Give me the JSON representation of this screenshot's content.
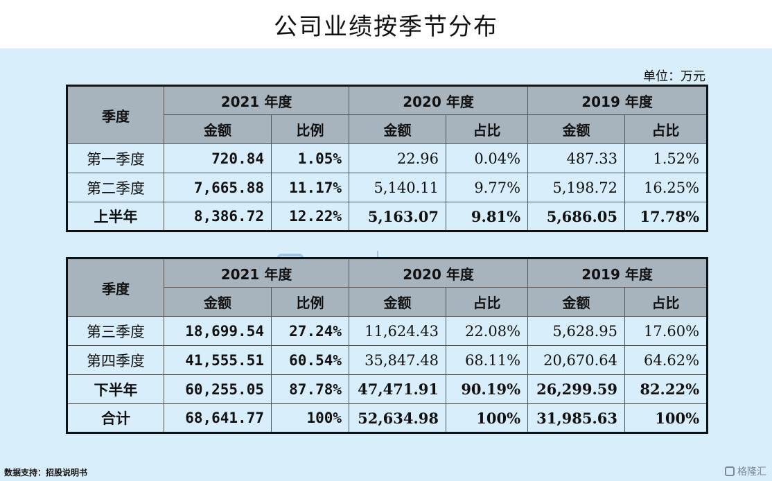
{
  "title": "公司业绩按季节分布",
  "unit": "单位：万元",
  "header": {
    "season": "季度",
    "years": [
      "2021 年度",
      "2020 年度",
      "2019 年度"
    ],
    "sub2021": [
      "金额",
      "比例"
    ],
    "sub_other": [
      "金额",
      "占比"
    ]
  },
  "table1": {
    "rows": [
      [
        "第一季度",
        "720.84",
        "1.05%",
        "22.96",
        "0.04%",
        "487.33",
        "1.52%"
      ],
      [
        "第二季度",
        "7,665.88",
        "11.17%",
        "5,140.11",
        "9.77%",
        "5,198.72",
        "16.25%"
      ],
      [
        "上半年",
        "8,386.72",
        "12.22%",
        "5,163.07",
        "9.81%",
        "5,686.05",
        "17.78%"
      ]
    ]
  },
  "table2": {
    "rows": [
      [
        "第三季度",
        "18,699.54",
        "27.24%",
        "11,624.43",
        "22.08%",
        "5,628.95",
        "17.60%"
      ],
      [
        "第四季度",
        "41,555.51",
        "60.54%",
        "35,847.48",
        "68.11%",
        "20,670.64",
        "64.62%"
      ],
      [
        "下半年",
        "60,255.05",
        "87.78%",
        "47,471.91",
        "90.19%",
        "26,299.59",
        "82.22%"
      ],
      [
        "合计",
        "68,641.77",
        "100%",
        "52,634.98",
        "100%",
        "31,985.63",
        "100%"
      ]
    ]
  },
  "watermark": {
    "brand": "格隆汇",
    "sub": "勾股大数据"
  },
  "source": "数据支持：招股说明书",
  "footer_brand": "格隆汇"
}
